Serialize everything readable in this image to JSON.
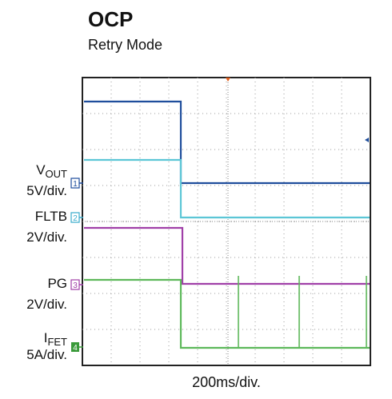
{
  "header": {
    "title": "OCP",
    "subtitle": "Retry Mode"
  },
  "channels": [
    {
      "marker": "1",
      "name": "V",
      "subscript": "OUT",
      "scale": "5V/div."
    },
    {
      "marker": "2",
      "name": "FLTB",
      "scale": "2V/div."
    },
    {
      "marker": "3",
      "name": "PG",
      "scale": "2V/div."
    },
    {
      "marker": "4",
      "name": "I",
      "subscript": "FET",
      "scale": "5A/div."
    }
  ],
  "timebase": "200ms/div."
}
